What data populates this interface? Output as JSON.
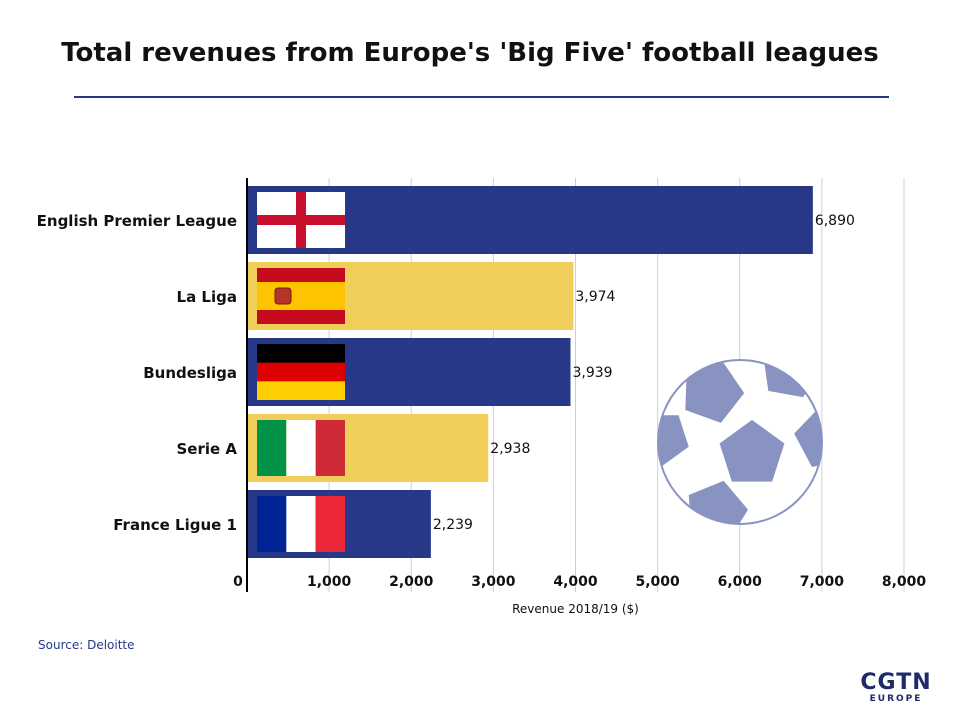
{
  "header": {
    "title": "Total revenues from Europe's 'Big Five' football leagues"
  },
  "source": "Source: Deloitte",
  "logo": {
    "main": "CGTN",
    "sub": "EUROPE"
  },
  "colors": {
    "navy": "#263887",
    "gold": "#efcf5a",
    "ball": "#8993c2",
    "rule": "#26378a"
  },
  "chart_data": {
    "type": "bar",
    "orientation": "horizontal",
    "categories": [
      "English Premier League",
      "La Liga",
      "Bundesliga",
      "Serie A",
      "France Ligue 1"
    ],
    "values": [
      6890,
      3974,
      3939,
      2938,
      2239
    ],
    "value_labels": [
      "6,890",
      "3,974",
      "3,939",
      "2,938",
      "2,239"
    ],
    "bar_colors": [
      "navy",
      "gold",
      "navy",
      "gold",
      "navy"
    ],
    "flags": [
      "england-flag",
      "spain-flag",
      "germany-flag",
      "italy-flag",
      "france-flag"
    ],
    "xlabel": "Revenue 2018/19 ($)",
    "ylabel": "",
    "xlim": [
      0,
      8000
    ],
    "xticks": [
      0,
      1000,
      2000,
      3000,
      4000,
      5000,
      6000,
      7000,
      8000
    ],
    "xtick_labels": [
      "0",
      "1,000",
      "2,000",
      "3,000",
      "4,000",
      "5,000",
      "6,000",
      "7,000",
      "8,000"
    ],
    "grid": "vertical",
    "decoration": "football-icon"
  }
}
